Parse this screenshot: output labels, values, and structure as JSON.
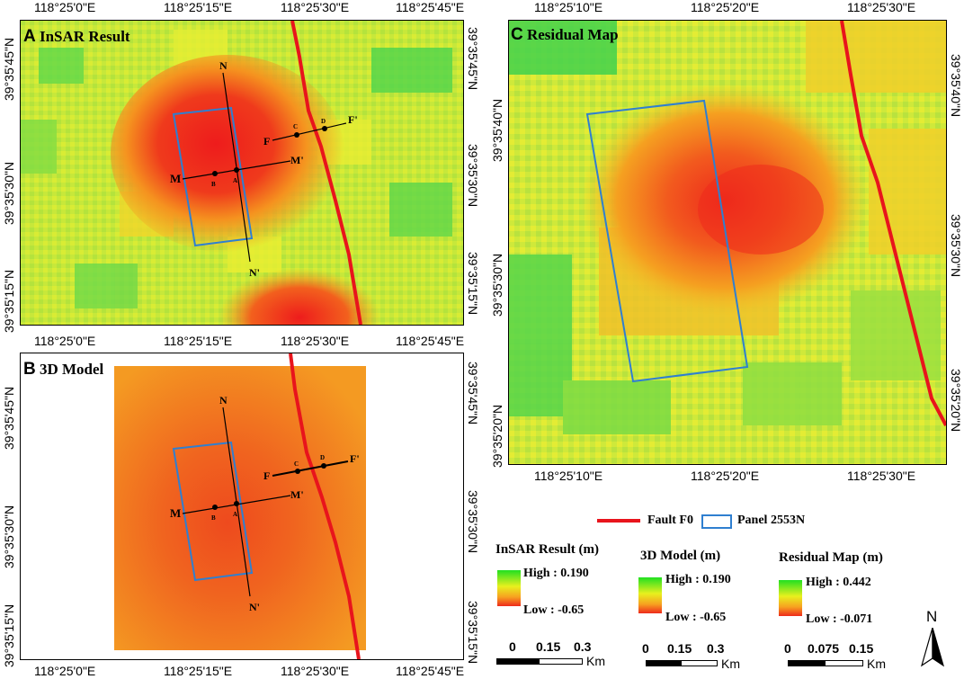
{
  "panel_a": {
    "title_letter": "A",
    "title": "InSAR Result",
    "top_ticks": [
      "118°25'0\"E",
      "118°25'15\"E",
      "118°25'30\"E",
      "118°25'45\"E"
    ],
    "bottom_ticks": [
      "118°25'0\"E",
      "118°25'15\"E",
      "118°25'30\"E",
      "118°25'45\"E"
    ],
    "left_ticks": [
      "39°35'45\"N",
      "39°35'30\"N",
      "39°35'15\"N"
    ],
    "right_ticks": [
      "39°35'45\"N",
      "39°35'30\"N",
      "39°35'15\"N"
    ]
  },
  "panel_b": {
    "title_letter": "B",
    "title": "3D Model",
    "bottom_ticks": [
      "118°25'0\"E",
      "118°25'15\"E",
      "118°25'30\"E",
      "118°25'45\"E"
    ],
    "left_ticks": [
      "39°35'45\"N",
      "39°35'30\"N",
      "39°35'15\"N"
    ],
    "right_ticks": [
      "39°35'45\"N",
      "39°35'30\"N",
      "39°35'15\"N"
    ]
  },
  "panel_c": {
    "title_letter": "C",
    "title": "Residual Map",
    "top_ticks": [
      "118°25'10\"E",
      "118°25'20\"E",
      "118°25'30\"E"
    ],
    "bottom_ticks": [
      "118°25'10\"E",
      "118°25'20\"E",
      "118°25'30\"E"
    ],
    "left_ticks": [
      "39°35'40\"N",
      "39°35'30\"N",
      "39°35'20\"N"
    ],
    "right_ticks": [
      "39°35'40\"N",
      "39°35'30\"N",
      "39°35'20\"N"
    ]
  },
  "profile_labels": {
    "n": "N",
    "n_prime": "N'",
    "m": "M",
    "m_prime": "M'",
    "f": "F",
    "f_prime": "F'",
    "a": "A",
    "b": "B",
    "c": "C",
    "d": "D"
  },
  "legend": {
    "fault_label": "Fault F0",
    "panel_label": "Panel 2553N",
    "fault_color": "#e8141c",
    "panel_color": "#2f7fd0",
    "insar": {
      "title": "InSAR Result (m)",
      "high": "High : 0.190",
      "low": "Low : -0.65"
    },
    "model": {
      "title": "3D Model (m)",
      "high": "High : 0.190",
      "low": "Low : -0.65"
    },
    "residual": {
      "title": "Residual Map (m)",
      "high": "High : 0.442",
      "low": "Low : -0.071"
    }
  },
  "scalebars": {
    "insar": {
      "labels": [
        "0",
        "0.15",
        "0.3"
      ],
      "unit": "Km"
    },
    "model": {
      "labels": [
        "0",
        "0.15",
        "0.3"
      ],
      "unit": "Km"
    },
    "residual": {
      "labels": [
        "0",
        "0.075",
        "0.15"
      ],
      "unit": "Km"
    }
  },
  "north_arrow": {
    "label": "N"
  }
}
